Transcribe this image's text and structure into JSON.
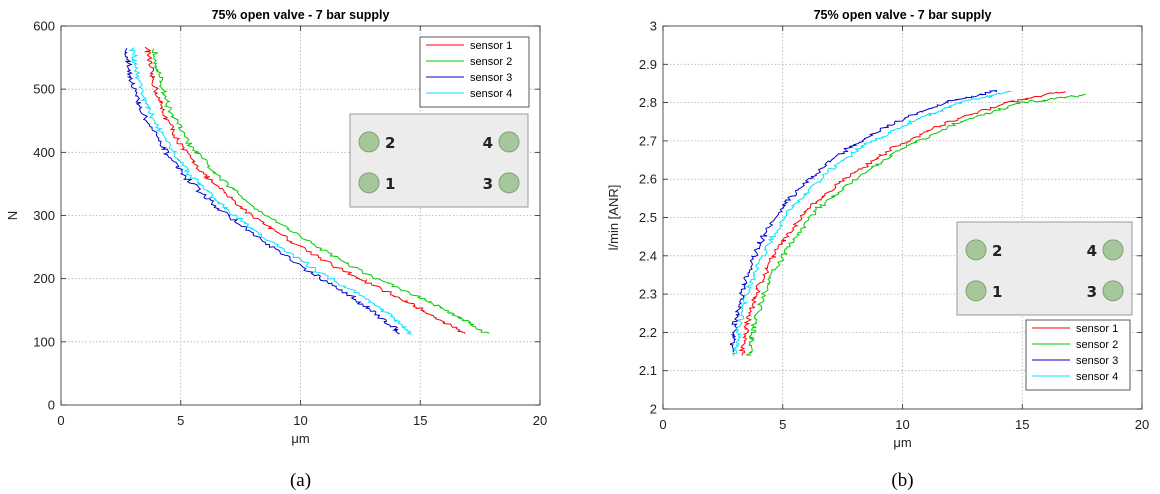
{
  "chart_data": [
    {
      "type": "line",
      "title": "75% open valve - 7 bar supply",
      "xlabel": "μm",
      "ylabel": "N",
      "xlim": [
        0,
        20
      ],
      "ylim": [
        0,
        600
      ],
      "xticks": [
        0,
        5,
        10,
        15,
        20
      ],
      "yticks": [
        0,
        100,
        200,
        300,
        400,
        500,
        600
      ],
      "grid": true,
      "legend_position": "top-right",
      "caption": "(a)",
      "sensor_layout": {
        "labels": [
          "2",
          "4",
          "1",
          "3"
        ],
        "position": "right"
      },
      "series": [
        {
          "name": "sensor 1",
          "color": "#ff0000",
          "x": [
            3.6,
            3.8,
            4.2,
            5.0,
            6.1,
            7.6,
            9.6,
            11.9,
            14.1,
            15.6,
            16.8
          ],
          "y": [
            565,
            520,
            470,
            410,
            360,
            310,
            260,
            210,
            170,
            140,
            113
          ]
        },
        {
          "name": "sensor 2",
          "color": "#00cc00",
          "x": [
            3.9,
            4.1,
            4.5,
            5.4,
            6.6,
            8.2,
            10.3,
            12.6,
            15.0,
            16.6,
            17.8
          ],
          "y": [
            565,
            520,
            470,
            410,
            360,
            310,
            260,
            210,
            170,
            140,
            113
          ]
        },
        {
          "name": "sensor 3",
          "color": "#0000cc",
          "x": [
            2.7,
            2.9,
            3.3,
            4.2,
            5.2,
            6.6,
            8.4,
            10.4,
            12.2,
            13.3,
            14.2
          ],
          "y": [
            565,
            520,
            470,
            410,
            360,
            310,
            260,
            210,
            170,
            140,
            113
          ]
        },
        {
          "name": "sensor 4",
          "color": "#00e5ff",
          "x": [
            3.0,
            3.2,
            3.6,
            4.5,
            5.5,
            6.9,
            8.7,
            10.8,
            12.7,
            13.8,
            14.6
          ],
          "y": [
            565,
            520,
            470,
            410,
            360,
            310,
            260,
            210,
            170,
            140,
            113
          ]
        }
      ]
    },
    {
      "type": "line",
      "title": "75% open valve - 7 bar supply",
      "xlabel": "μm",
      "ylabel": "l/min [ANR]",
      "xlim": [
        0,
        20
      ],
      "ylim": [
        2,
        3
      ],
      "xticks": [
        0,
        5,
        10,
        15,
        20
      ],
      "yticks": [
        2,
        2.1,
        2.2,
        2.3,
        2.4,
        2.5,
        2.6,
        2.7,
        2.8,
        2.9,
        3
      ],
      "grid": true,
      "legend_position": "bottom-right",
      "caption": "(b)",
      "sensor_layout": {
        "labels": [
          "2",
          "4",
          "1",
          "3"
        ],
        "position": "right"
      },
      "series": [
        {
          "name": "sensor 1",
          "color": "#ff0000",
          "x": [
            3.3,
            3.5,
            4.0,
            4.8,
            6.0,
            7.6,
            9.6,
            11.9,
            14.4,
            16.8
          ],
          "y": [
            2.14,
            2.22,
            2.32,
            2.42,
            2.52,
            2.6,
            2.68,
            2.75,
            2.8,
            2.83
          ]
        },
        {
          "name": "sensor 2",
          "color": "#00cc00",
          "x": [
            3.6,
            3.8,
            4.3,
            5.2,
            6.4,
            8.0,
            10.0,
            12.4,
            15.0,
            17.7
          ],
          "y": [
            2.14,
            2.22,
            2.32,
            2.42,
            2.52,
            2.6,
            2.68,
            2.75,
            2.8,
            2.82
          ]
        },
        {
          "name": "sensor 3",
          "color": "#0000cc",
          "x": [
            2.9,
            3.0,
            3.4,
            4.0,
            5.0,
            6.3,
            7.9,
            9.8,
            11.8,
            13.9
          ],
          "y": [
            2.15,
            2.23,
            2.33,
            2.43,
            2.53,
            2.61,
            2.69,
            2.75,
            2.8,
            2.83
          ]
        },
        {
          "name": "sensor 4",
          "color": "#00e5ff",
          "x": [
            3.0,
            3.2,
            3.6,
            4.3,
            5.3,
            6.7,
            8.4,
            10.4,
            12.4,
            14.5
          ],
          "y": [
            2.14,
            2.22,
            2.32,
            2.42,
            2.52,
            2.61,
            2.69,
            2.75,
            2.8,
            2.83
          ]
        }
      ]
    }
  ]
}
